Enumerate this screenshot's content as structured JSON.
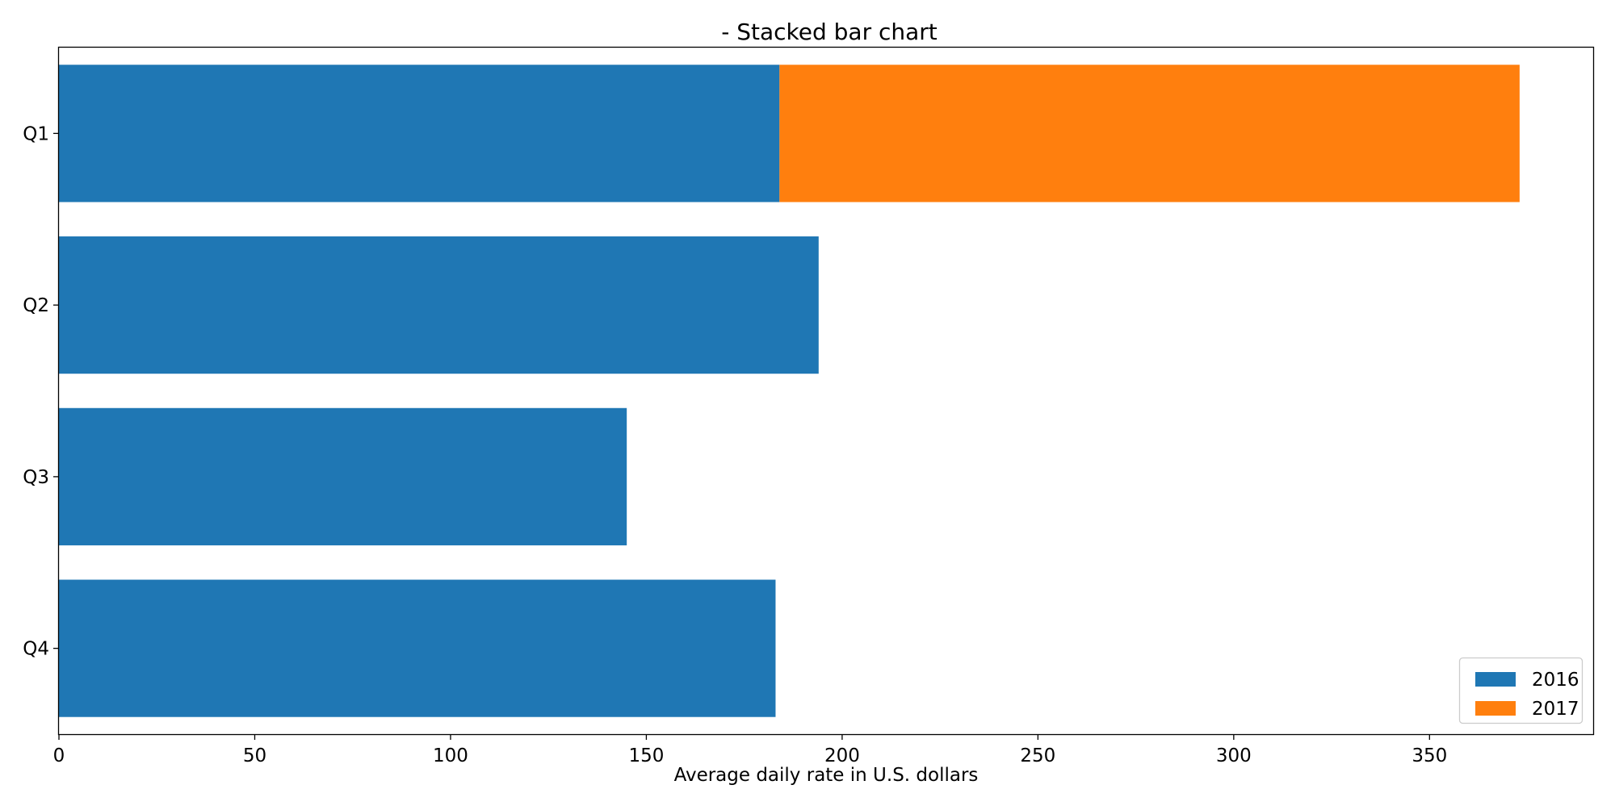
{
  "chart_data": {
    "type": "bar",
    "orientation": "horizontal",
    "stacked": true,
    "title": "- Stacked bar chart",
    "xlabel": "Average daily rate in U.S. dollars",
    "ylabel": "",
    "categories": [
      "Q1",
      "Q2",
      "Q3",
      "Q4"
    ],
    "series": [
      {
        "name": "2016",
        "values": [
          184,
          194,
          145,
          183
        ],
        "color": "#1f77b4"
      },
      {
        "name": "2017",
        "values": [
          189,
          0,
          0,
          0
        ],
        "color": "#ff7f0e"
      }
    ],
    "xlim": [
      0,
      392
    ],
    "xticks": [
      0,
      50,
      100,
      150,
      200,
      250,
      300,
      350
    ],
    "grid": false,
    "legend_position": "bottom-right"
  }
}
